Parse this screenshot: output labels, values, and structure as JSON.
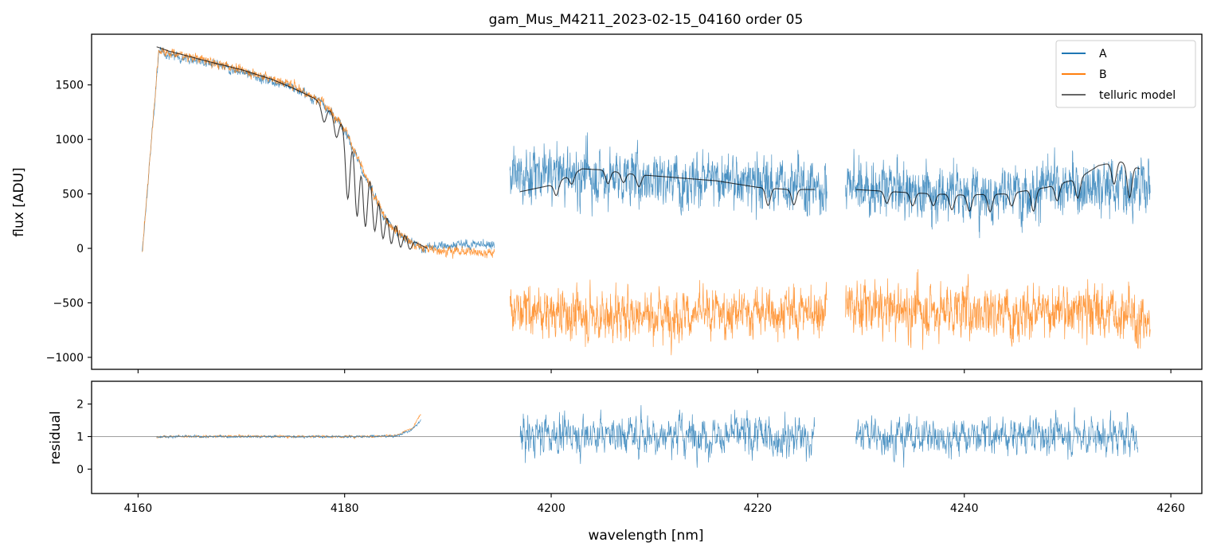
{
  "chart_data": {
    "title": "gam_Mus_M4211_2023-02-15_04160  order 05",
    "xlabel": "wavelength [nm]",
    "xlim": [
      4155.5,
      4263
    ],
    "x_ticks": [
      "4160",
      "4180",
      "4200",
      "4220",
      "4240",
      "4260"
    ],
    "x_tick_values": [
      4160,
      4180,
      4200,
      4220,
      4240,
      4260
    ],
    "colors": {
      "A": "#1f77b4",
      "B": "#ff7f0e",
      "telluric": "#000000",
      "ref_line": "#7f7f7f"
    },
    "panels": [
      {
        "type": "line",
        "ylabel": "flux [ADU]",
        "ylim": [
          -1110,
          1965
        ],
        "y_ticks": [
          "1500",
          "1000",
          "500",
          "0",
          "−500",
          "−1000"
        ],
        "y_tick_values": [
          1500,
          1000,
          500,
          0,
          -500,
          -1000
        ],
        "legend": {
          "placement": "top-right",
          "entries": [
            "A",
            "B",
            "telluric model"
          ]
        },
        "series": [
          {
            "name": "A",
            "segments": [
              {
                "x": [
                  4160.4,
                  4162,
                  4165,
                  4170,
                  4175,
                  4178,
                  4180,
                  4182,
                  4184,
                  4186,
                  4187.5,
                  4190,
                  4194.5
                ],
                "y": [
                  -50,
                  1800,
                  1740,
                  1620,
                  1480,
                  1320,
                  1100,
                  650,
                  250,
                  80,
                  0,
                  30,
                  40
                ],
                "noise": 45
              },
              {
                "x": [
                  4196,
                  4200,
                  4205,
                  4210,
                  4215,
                  4220,
                  4225,
                  4226.7
                ],
                "y": [
                  640,
                  690,
                  650,
                  660,
                  630,
                  600,
                  570,
                  560
                ],
                "noise": 260
              },
              {
                "x": [
                  4228.5,
                  4232,
                  4236,
                  4240,
                  4244,
                  4248,
                  4252,
                  4256,
                  4258
                ],
                "y": [
                  590,
                  540,
                  520,
                  510,
                  520,
                  560,
                  580,
                  560,
                  620
                ],
                "noise": 270
              }
            ]
          },
          {
            "name": "B",
            "segments": [
              {
                "x": [
                  4160.4,
                  4162,
                  4165,
                  4170,
                  4175,
                  4178,
                  4180,
                  4182,
                  4184,
                  4186,
                  4187.5,
                  4190,
                  4194.5
                ],
                "y": [
                  -40,
                  1820,
                  1760,
                  1640,
                  1500,
                  1330,
                  1110,
                  660,
                  260,
                  80,
                  0,
                  -20,
                  -40
                ],
                "noise": 45
              },
              {
                "x": [
                  4196,
                  4200,
                  4205,
                  4210,
                  4215,
                  4220,
                  4225,
                  4226.7
                ],
                "y": [
                  -560,
                  -600,
                  -620,
                  -600,
                  -610,
                  -590,
                  -580,
                  -570
                ],
                "noise": 230
              },
              {
                "x": [
                  4228.5,
                  4232,
                  4236,
                  4240,
                  4244,
                  4248,
                  4252,
                  4256,
                  4258
                ],
                "y": [
                  -520,
                  -560,
                  -580,
                  -560,
                  -570,
                  -590,
                  -560,
                  -620,
                  -700
                ],
                "noise": 250
              }
            ]
          },
          {
            "name": "telluric model",
            "segments": [
              {
                "x": [
                  4161.8,
                  4163,
                  4165,
                  4167,
                  4170,
                  4173,
                  4175,
                  4177,
                  4179,
                  4181,
                  4182,
                  4183,
                  4184,
                  4185,
                  4186,
                  4187,
                  4188
                ],
                "y": [
                  1850,
                  1810,
                  1760,
                  1710,
                  1640,
                  1550,
                  1470,
                  1380,
                  1240,
                  1030,
                  850,
                  640,
                  430,
                  260,
                  140,
                  50,
                  0
                ],
                "dips": [
                  [
                    4178,
                    150
                  ],
                  [
                    4179.2,
                    200
                  ],
                  [
                    4180.3,
                    650
                  ],
                  [
                    4181.2,
                    700
                  ],
                  [
                    4182,
                    650
                  ],
                  [
                    4182.9,
                    500
                  ],
                  [
                    4183.7,
                    400
                  ],
                  [
                    4184.5,
                    300
                  ],
                  [
                    4185.4,
                    200
                  ],
                  [
                    4186.3,
                    120
                  ]
                ]
              },
              {
                "x": [
                  4197,
                  4200,
                  4203,
                  4205,
                  4208,
                  4212,
                  4216,
                  4220,
                  4223,
                  4225.5
                ],
                "y": [
                  520,
                  580,
                  730,
                  720,
                  680,
                  650,
                  620,
                  560,
                  540,
                  540
                ],
                "dips": [
                  [
                    4200.5,
                    120
                  ],
                  [
                    4202,
                    90
                  ],
                  [
                    4205.5,
                    120
                  ],
                  [
                    4207,
                    90
                  ],
                  [
                    4208.5,
                    110
                  ],
                  [
                    4221,
                    160
                  ],
                  [
                    4223.5,
                    140
                  ]
                ]
              },
              {
                "x": [
                  4229.5,
                  4233,
                  4237,
                  4240,
                  4244,
                  4248,
                  4251,
                  4253,
                  4255,
                  4257
                ],
                "y": [
                  540,
                  520,
                  500,
                  490,
                  500,
                  560,
                  640,
                  760,
                  800,
                  730
                ],
                "dips": [
                  [
                    4232.5,
                    110
                  ],
                  [
                    4235,
                    120
                  ],
                  [
                    4237,
                    110
                  ],
                  [
                    4238.8,
                    140
                  ],
                  [
                    4240.5,
                    150
                  ],
                  [
                    4242.5,
                    160
                  ],
                  [
                    4244.6,
                    120
                  ],
                  [
                    4246.7,
                    200
                  ],
                  [
                    4249,
                    150
                  ],
                  [
                    4251,
                    180
                  ],
                  [
                    4254.5,
                    200
                  ],
                  [
                    4256,
                    300
                  ]
                ]
              }
            ]
          }
        ]
      },
      {
        "type": "line",
        "ylabel": "residual",
        "ylim": [
          -0.75,
          2.7
        ],
        "y_ticks": [
          "2",
          "1",
          "0"
        ],
        "y_tick_values": [
          2,
          1,
          0
        ],
        "reference_y": 1,
        "series": [
          {
            "name": "A",
            "segments": [
              {
                "x": [
                  4161.8,
                  4170,
                  4180,
                  4185,
                  4186.5,
                  4187.4
                ],
                "y": [
                  1,
                  1,
                  1,
                  1.02,
                  1.2,
                  1.5
                ],
                "noise": 0.04
              },
              {
                "x": [
                  4197,
                  4205,
                  4215,
                  4225.5
                ],
                "y": [
                  1.05,
                  1.1,
                  1.05,
                  1.0
                ],
                "noise": 0.65
              },
              {
                "x": [
                  4229.5,
                  4240,
                  4250,
                  4256.8
                ],
                "y": [
                  1.05,
                  1.0,
                  1.05,
                  1.0
                ],
                "noise": 0.6
              }
            ]
          },
          {
            "name": "B",
            "segments": [
              {
                "x": [
                  4161.8,
                  4170,
                  4180,
                  4185,
                  4186.5,
                  4187.4
                ],
                "y": [
                  1,
                  1.01,
                  1.0,
                  1.03,
                  1.25,
                  1.7
                ],
                "noise": 0.04
              }
            ]
          }
        ]
      }
    ]
  }
}
